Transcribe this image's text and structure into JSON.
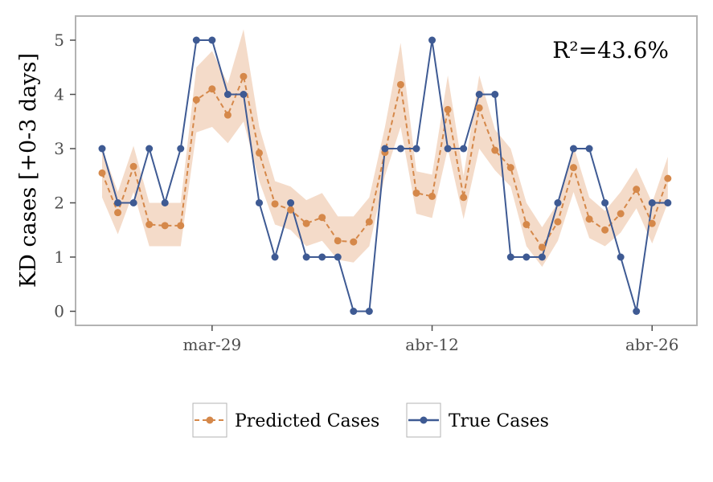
{
  "chart_data": {
    "type": "line",
    "xlabel": "",
    "ylabel": "KD cases [+0-3 days]",
    "ylim": [
      -0.25,
      5.45
    ],
    "yticks": [
      0,
      1,
      2,
      3,
      4,
      5
    ],
    "x_tick_labels": [
      {
        "label": "mar-29",
        "index": 7
      },
      {
        "label": "abr-12",
        "index": 21
      },
      {
        "label": "abr-26",
        "index": 35
      }
    ],
    "annotation": "R²=43.6%",
    "legend_position": "bottom-center",
    "colors": {
      "predicted": "#d5884a",
      "true": "#3e5a93",
      "band": "#f3d7c3",
      "frame": "#b3b3b3"
    },
    "series": [
      {
        "name": "Predicted Cases",
        "style": "dashed-with-markers",
        "values": [
          2.55,
          1.82,
          2.67,
          1.6,
          1.58,
          1.58,
          3.9,
          4.1,
          3.62,
          4.33,
          2.92,
          1.98,
          1.87,
          1.62,
          1.73,
          1.3,
          1.28,
          1.65,
          2.93,
          4.18,
          2.18,
          2.12,
          3.72,
          2.1,
          3.75,
          2.97,
          2.65,
          1.6,
          1.18,
          1.65,
          2.65,
          1.7,
          1.5,
          1.8,
          2.25,
          1.62,
          2.45
        ],
        "lower": [
          2.1,
          1.42,
          2.2,
          1.2,
          1.2,
          1.2,
          3.3,
          3.4,
          3.1,
          3.5,
          2.4,
          1.6,
          1.5,
          1.2,
          1.3,
          0.95,
          0.9,
          1.2,
          2.5,
          3.4,
          1.8,
          1.72,
          3.0,
          1.7,
          3.0,
          2.6,
          2.3,
          1.2,
          0.82,
          1.3,
          2.2,
          1.35,
          1.2,
          1.45,
          1.9,
          1.25,
          2.0
        ],
        "upper": [
          3.0,
          2.2,
          3.05,
          2.0,
          2.0,
          2.0,
          4.5,
          4.8,
          4.2,
          5.2,
          3.4,
          2.4,
          2.3,
          2.05,
          2.18,
          1.75,
          1.75,
          2.1,
          3.4,
          4.95,
          2.58,
          2.52,
          4.35,
          2.5,
          4.35,
          3.35,
          3.0,
          2.0,
          1.55,
          2.0,
          3.05,
          2.1,
          1.85,
          2.2,
          2.65,
          2.0,
          2.85
        ]
      },
      {
        "name": "True Cases",
        "style": "solid-with-markers",
        "values": [
          3,
          2,
          2,
          3,
          2,
          3,
          5,
          5,
          4,
          4,
          2,
          1,
          2,
          1,
          1,
          1,
          0,
          0,
          3,
          3,
          3,
          5,
          3,
          3,
          4,
          4,
          1,
          1,
          1,
          2,
          3,
          3,
          2,
          1,
          0,
          2,
          2
        ]
      }
    ]
  }
}
